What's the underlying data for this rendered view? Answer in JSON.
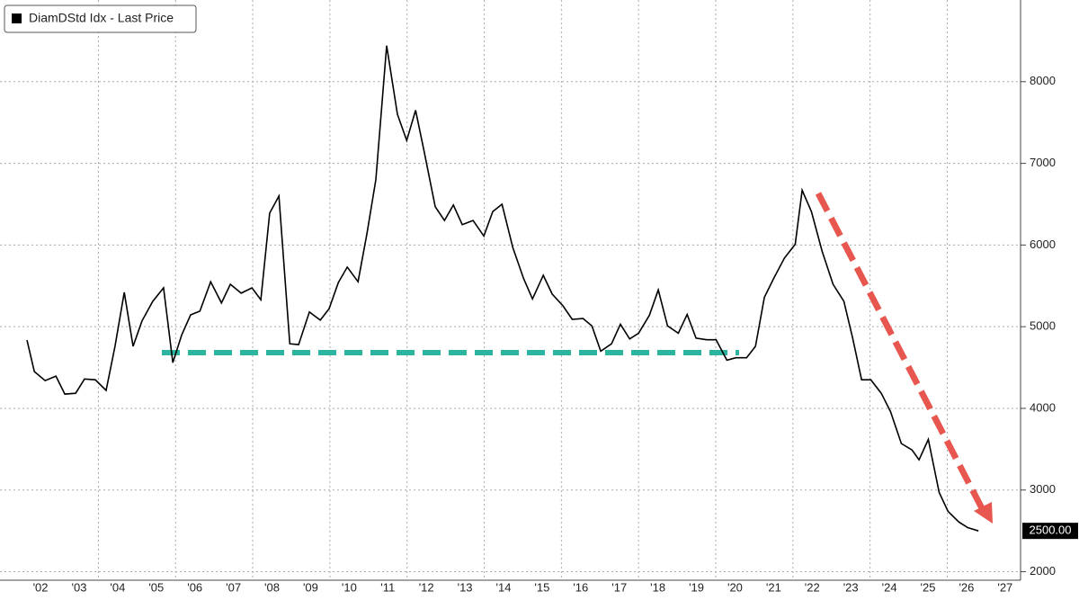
{
  "chart_data": {
    "type": "line",
    "legend": "DiamDStd Idx - Last Price",
    "legend_position": "upper left",
    "series": [
      {
        "name": "DiamDStd Idx - Last Price",
        "color": "#000000",
        "x": [
          2002.15,
          2002.34,
          2002.62,
          2002.9,
          2003.13,
          2003.41,
          2003.64,
          2003.92,
          2004.2,
          2004.43,
          2004.67,
          2004.9,
          2005.13,
          2005.41,
          2005.69,
          2005.93,
          2006.16,
          2006.39,
          2006.63,
          2006.91,
          2007.19,
          2007.42,
          2007.7,
          2007.98,
          2008.21,
          2008.44,
          2008.68,
          2008.96,
          2009.19,
          2009.47,
          2009.75,
          2009.98,
          2010.22,
          2010.45,
          2010.73,
          2010.96,
          2011.19,
          2011.47,
          2011.75,
          2011.99,
          2012.22,
          2012.45,
          2012.73,
          2012.97,
          2013.2,
          2013.43,
          2013.71,
          2013.99,
          2014.22,
          2014.46,
          2014.74,
          2015.02,
          2015.25,
          2015.53,
          2015.76,
          2016.04,
          2016.28,
          2016.56,
          2016.79,
          2017.02,
          2017.3,
          2017.53,
          2017.77,
          2018.0,
          2018.28,
          2018.51,
          2018.75,
          2019.03,
          2019.26,
          2019.49,
          2019.77,
          2020.01,
          2020.29,
          2020.52,
          2020.8,
          2021.03,
          2021.26,
          2021.5,
          2021.78,
          2022.06,
          2022.24,
          2022.48,
          2022.76,
          2023.04,
          2023.32,
          2023.55,
          2023.78,
          2024.02,
          2024.29,
          2024.53,
          2024.81,
          2025.09,
          2025.27,
          2025.51,
          2025.79,
          2026.02,
          2026.3,
          2026.53,
          2026.81
        ],
        "values": [
          4836,
          4450,
          4340,
          4395,
          4175,
          4185,
          4360,
          4350,
          4220,
          4760,
          5420,
          4760,
          5070,
          5310,
          5475,
          4560,
          4900,
          5145,
          5190,
          5550,
          5290,
          5520,
          5410,
          5475,
          5330,
          6390,
          6600,
          4790,
          4780,
          5180,
          5080,
          5220,
          5540,
          5730,
          5550,
          6140,
          6800,
          8440,
          7600,
          7280,
          7650,
          7130,
          6470,
          6300,
          6490,
          6250,
          6300,
          6110,
          6410,
          6500,
          5970,
          5590,
          5340,
          5630,
          5400,
          5255,
          5090,
          5100,
          5010,
          4700,
          4790,
          5030,
          4850,
          4920,
          5140,
          5450,
          5010,
          4920,
          5150,
          4860,
          4840,
          4840,
          4590,
          4620,
          4620,
          4760,
          5360,
          5590,
          5840,
          6010,
          6670,
          6410,
          5920,
          5520,
          5310,
          4860,
          4350,
          4350,
          4185,
          3960,
          3570,
          3490,
          3370,
          3620,
          2970,
          2740,
          2610,
          2540,
          2500
        ]
      }
    ],
    "last_label": {
      "value": 2500,
      "label": "2500.00"
    },
    "xlim": [
      2001.45,
      2027.9
    ],
    "xticks": [
      {
        "value": 2002.5,
        "label": "'02"
      },
      {
        "value": 2003.5,
        "label": "'03"
      },
      {
        "value": 2004.5,
        "label": "'04"
      },
      {
        "value": 2005.5,
        "label": "'05"
      },
      {
        "value": 2006.5,
        "label": "'06"
      },
      {
        "value": 2007.5,
        "label": "'07"
      },
      {
        "value": 2008.5,
        "label": "'08"
      },
      {
        "value": 2009.5,
        "label": "'09"
      },
      {
        "value": 2010.5,
        "label": "'10"
      },
      {
        "value": 2011.5,
        "label": "'11"
      },
      {
        "value": 2012.5,
        "label": "'12"
      },
      {
        "value": 2013.5,
        "label": "'13"
      },
      {
        "value": 2014.5,
        "label": "'14"
      },
      {
        "value": 2015.5,
        "label": "'15"
      },
      {
        "value": 2016.5,
        "label": "'16"
      },
      {
        "value": 2017.5,
        "label": "'17"
      },
      {
        "value": 2018.5,
        "label": "'18"
      },
      {
        "value": 2019.5,
        "label": "'19"
      },
      {
        "value": 2020.5,
        "label": "'20"
      },
      {
        "value": 2021.5,
        "label": "'21"
      },
      {
        "value": 2022.5,
        "label": "'22"
      },
      {
        "value": 2023.5,
        "label": "'23"
      },
      {
        "value": 2024.5,
        "label": "'24"
      },
      {
        "value": 2025.5,
        "label": "'25"
      },
      {
        "value": 2026.5,
        "label": "'26"
      },
      {
        "value": 2027.5,
        "label": "'27"
      }
    ],
    "ylim": [
      1940,
      9000
    ],
    "yticks": [
      2000,
      3000,
      4000,
      5000,
      6000,
      7000,
      8000
    ],
    "grid": true
  }
}
